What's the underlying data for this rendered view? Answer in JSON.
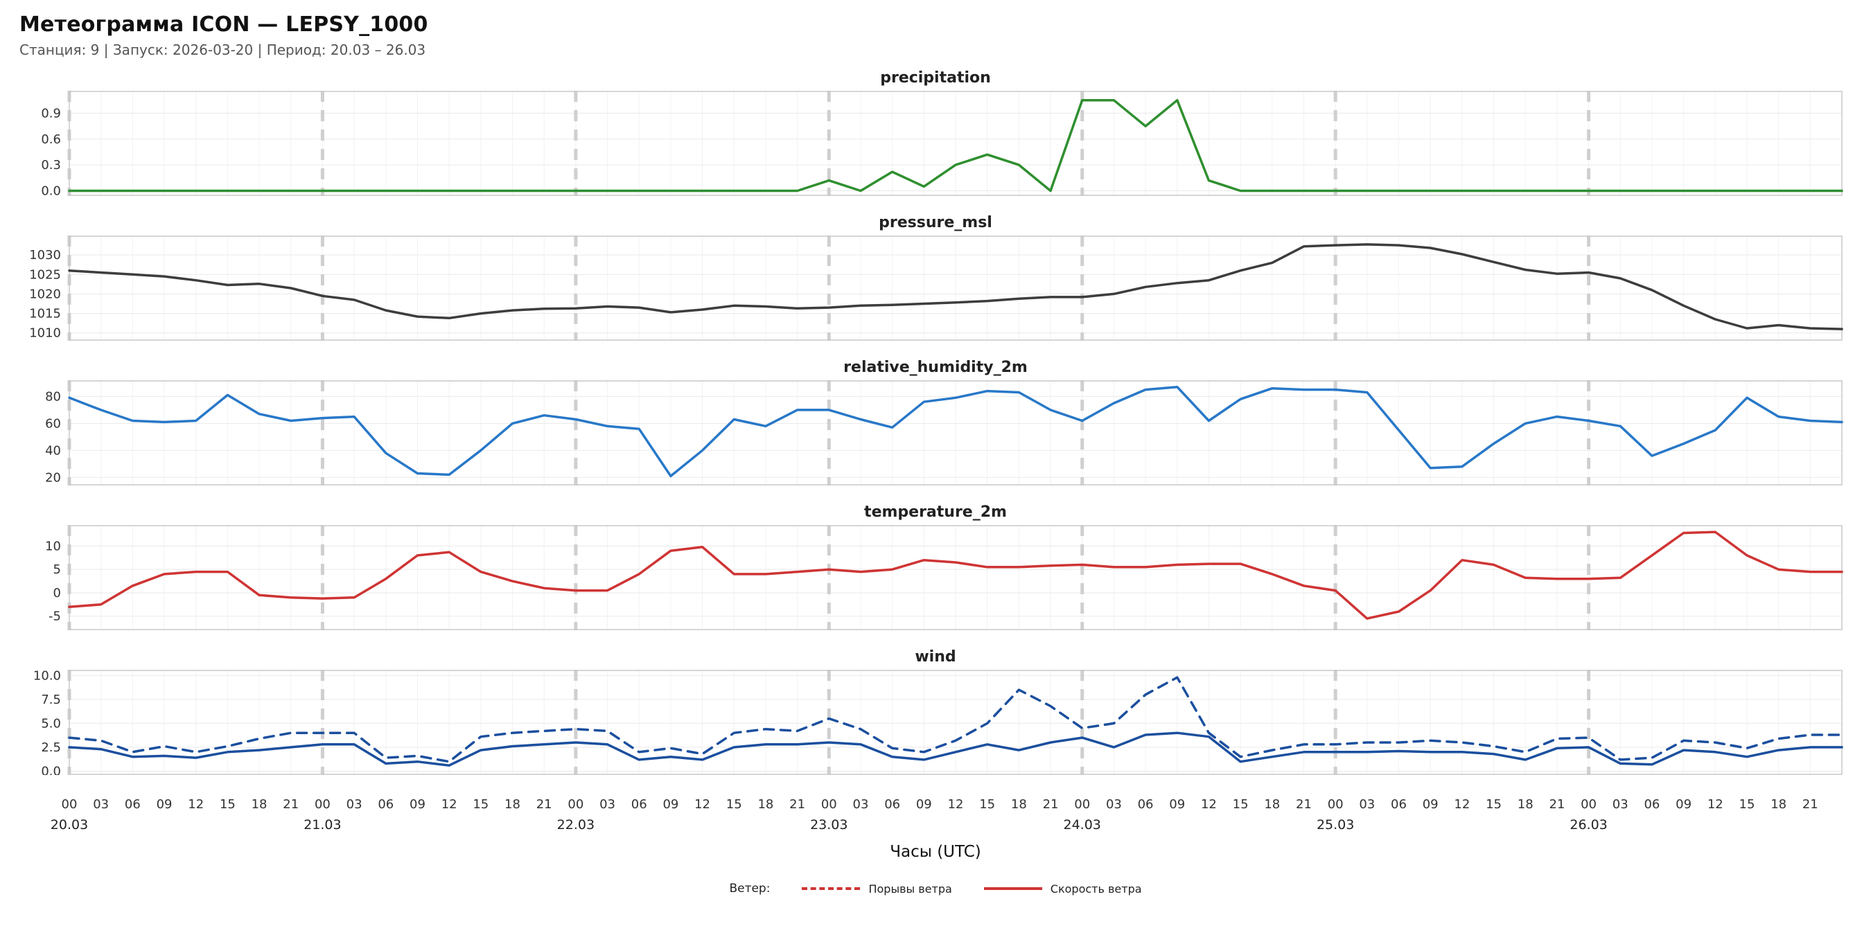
{
  "header": {
    "title": "Метеограмма ICON — LEPSY_1000",
    "subtitle": "Станция: 9  | Запуск: 2026-03-20  | Период: 20.03 – 26.03"
  },
  "xaxis": {
    "label": "Часы (UTC)",
    "hour_labels": [
      "00",
      "03",
      "06",
      "09",
      "12",
      "15",
      "18",
      "21"
    ],
    "day_labels": [
      "20.03",
      "21.03",
      "22.03",
      "23.03",
      "24.03",
      "25.03",
      "26.03"
    ],
    "step_hours": 3,
    "hours_total": 168
  },
  "legend": {
    "title": "Ветер:",
    "items": [
      {
        "label": "Порывы ветра",
        "style": "dashed",
        "color": "#cf3434"
      },
      {
        "label": "Скорость ветра",
        "style": "solid",
        "color": "#cf3434"
      }
    ]
  },
  "grid": {
    "minor_color": "#f2f2f2",
    "tick_color": "#e9e9e9",
    "day_line_color": "#cfcfcf",
    "border_color": "#c8c8c8"
  },
  "chart_data": [
    {
      "type": "line",
      "title": "precipitation",
      "color": "#2f8f2f",
      "ylim": [
        -0.06,
        1.16
      ],
      "yticks": [
        0.0,
        0.3,
        0.6,
        0.9
      ],
      "ytick_labels": [
        "0.0",
        "0.3",
        "0.6",
        "0.9"
      ],
      "x_step_hours": 3,
      "values": [
        0,
        0,
        0,
        0,
        0,
        0,
        0,
        0,
        0,
        0,
        0,
        0,
        0,
        0,
        0,
        0,
        0,
        0,
        0,
        0,
        0,
        0,
        0,
        0,
        0.12,
        0,
        0.22,
        0.05,
        0.3,
        0.42,
        0.3,
        0,
        1.05,
        1.05,
        0.75,
        1.05,
        0.12,
        0,
        0,
        0,
        0,
        0,
        0,
        0,
        0,
        0,
        0,
        0,
        0,
        0,
        0,
        0,
        0,
        0,
        0,
        0,
        0
      ]
    },
    {
      "type": "line",
      "title": "pressure_msl",
      "color": "#3d3d3d",
      "ylim": [
        1008,
        1035
      ],
      "yticks": [
        1010,
        1015,
        1020,
        1025,
        1030
      ],
      "ytick_labels": [
        "1010",
        "1015",
        "1020",
        "1025",
        "1030"
      ],
      "x_step_hours": 3,
      "values": [
        1026,
        1025.5,
        1025,
        1024.5,
        1023.5,
        1022.3,
        1022.6,
        1021.5,
        1019.5,
        1018.5,
        1015.8,
        1014.2,
        1013.8,
        1015,
        1015.8,
        1016.2,
        1016.3,
        1016.8,
        1016.5,
        1015.3,
        1016,
        1017,
        1016.8,
        1016.3,
        1016.5,
        1017,
        1017.2,
        1017.5,
        1017.8,
        1018.2,
        1018.8,
        1019.2,
        1019.2,
        1020,
        1021.8,
        1022.8,
        1023.5,
        1026,
        1028,
        1032.2,
        1032.5,
        1032.7,
        1032.5,
        1031.8,
        1030.2,
        1028.2,
        1026.2,
        1025.2,
        1025.5,
        1024,
        1021,
        1017,
        1013.5,
        1011.2,
        1012,
        1011.2,
        1011
      ]
    },
    {
      "type": "line",
      "title": "relative_humidity_2m",
      "color": "#2878c8",
      "ylim": [
        14,
        92
      ],
      "yticks": [
        20,
        40,
        60,
        80
      ],
      "ytick_labels": [
        "20",
        "40",
        "60",
        "80"
      ],
      "x_step_hours": 3,
      "values": [
        79,
        70,
        62,
        61,
        62,
        81,
        67,
        62,
        64,
        65,
        38,
        23,
        22,
        40,
        60,
        66,
        63,
        58,
        56,
        21,
        40,
        63,
        58,
        70,
        70,
        63,
        57,
        76,
        79,
        84,
        83,
        70,
        62,
        75,
        85,
        87,
        62,
        78,
        86,
        85,
        85,
        83,
        55,
        27,
        28,
        45,
        60,
        65,
        62,
        58,
        36,
        45,
        55,
        79,
        65,
        62,
        61
      ]
    },
    {
      "type": "line",
      "title": "temperature_2m",
      "color": "#cf3434",
      "ylim": [
        -8,
        14.5
      ],
      "yticks": [
        -5,
        0,
        5,
        10
      ],
      "ytick_labels": [
        "-5",
        "0",
        "5",
        "10"
      ],
      "x_step_hours": 3,
      "values": [
        -3,
        -2.5,
        1.5,
        4,
        4.5,
        4.5,
        -0.5,
        -1,
        -1.2,
        -1,
        3,
        8,
        8.7,
        4.5,
        2.5,
        1,
        0.5,
        0.5,
        4,
        9,
        9.8,
        4,
        4,
        4.5,
        5,
        4.5,
        5,
        7,
        6.5,
        5.5,
        5.5,
        5.8,
        6,
        5.5,
        5.5,
        6,
        6.2,
        6.2,
        4,
        1.5,
        0.5,
        -5.5,
        -4,
        0.5,
        7,
        6,
        3.2,
        3,
        3,
        3.2,
        8,
        12.8,
        13,
        8,
        5,
        4.5,
        4.5
      ]
    },
    {
      "type": "line",
      "title": "wind",
      "color": "#1b4f9e",
      "ylim": [
        -0.4,
        10.6
      ],
      "yticks": [
        0,
        2.5,
        5,
        7.5,
        10
      ],
      "ytick_labels": [
        "0.0",
        "2.5",
        "5.0",
        "7.5",
        "10.0"
      ],
      "x_step_hours": 3,
      "series": [
        {
          "name": "Скорость ветра",
          "style": "solid",
          "values": [
            2.5,
            2.3,
            1.5,
            1.6,
            1.4,
            2.0,
            2.2,
            2.5,
            2.8,
            2.8,
            0.8,
            1.0,
            0.6,
            2.2,
            2.6,
            2.8,
            3.0,
            2.8,
            1.2,
            1.5,
            1.2,
            2.5,
            2.8,
            2.8,
            3.0,
            2.8,
            1.5,
            1.2,
            2.0,
            2.8,
            2.2,
            3.0,
            3.5,
            2.5,
            3.8,
            4.0,
            3.6,
            1.0,
            1.5,
            2.0,
            2.0,
            2.0,
            2.1,
            2.0,
            2.0,
            1.8,
            1.2,
            2.4,
            2.5,
            0.8,
            0.7,
            2.2,
            2.0,
            1.5,
            2.2,
            2.5,
            2.5
          ]
        },
        {
          "name": "Порывы ветра",
          "style": "dashed",
          "values": [
            3.5,
            3.2,
            2.0,
            2.6,
            2.0,
            2.6,
            3.4,
            4.0,
            4.0,
            4.0,
            1.4,
            1.6,
            1.0,
            3.6,
            4.0,
            4.2,
            4.4,
            4.2,
            2.0,
            2.4,
            1.8,
            4.0,
            4.4,
            4.2,
            5.5,
            4.4,
            2.4,
            2.0,
            3.2,
            5.0,
            8.5,
            6.8,
            4.5,
            5.0,
            8.0,
            9.8,
            4.0,
            1.5,
            2.2,
            2.8,
            2.8,
            3.0,
            3.0,
            3.2,
            3.0,
            2.6,
            2.0,
            3.4,
            3.5,
            1.2,
            1.4,
            3.2,
            3.0,
            2.4,
            3.4,
            3.8,
            3.8
          ]
        }
      ]
    }
  ]
}
